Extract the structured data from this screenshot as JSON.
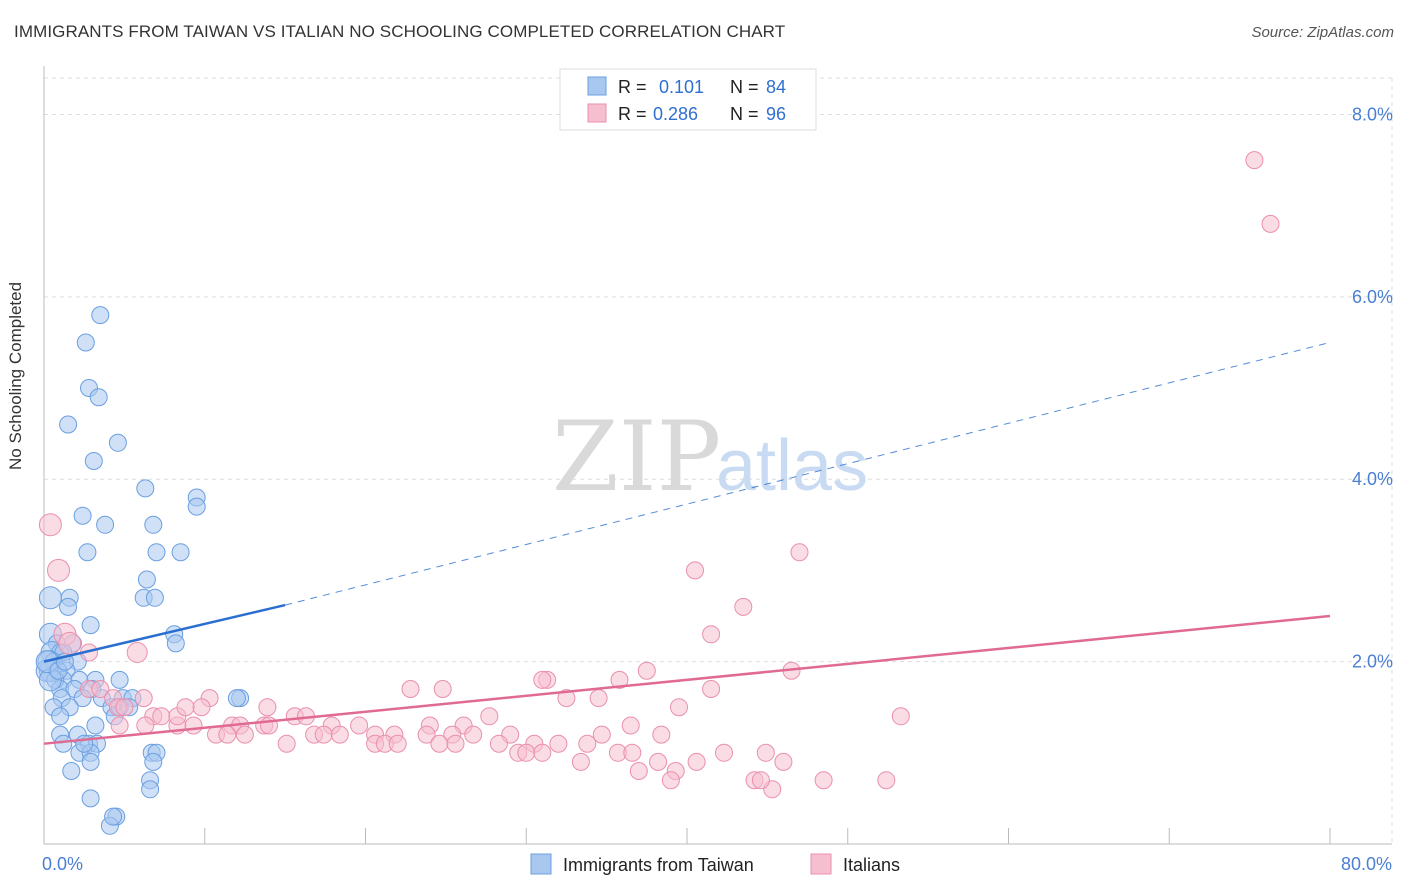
{
  "title": "IMMIGRANTS FROM TAIWAN VS ITALIAN NO SCHOOLING COMPLETED CORRELATION CHART",
  "source": "Source: ZipAtlas.com",
  "watermark": {
    "part1": "ZIP",
    "part2": "atlas"
  },
  "legend": {
    "rows": [
      {
        "r_label": "R =",
        "r_value": "0.101",
        "n_label": "N =",
        "n_value": "84"
      },
      {
        "r_label": "R =",
        "r_value": "0.286",
        "n_label": "N =",
        "n_value": "96"
      }
    ]
  },
  "bottom_legend": [
    "Immigrants from Taiwan",
    "Italians"
  ],
  "colors": {
    "blue_fill": "#a9c8f0",
    "blue_stroke": "#6a9fe0",
    "blue_line": "#2a6fd0",
    "pink_fill": "#f6bfd0",
    "pink_stroke": "#ea8fae",
    "pink_line": "#e06a92",
    "grid": "#dddddd",
    "axis_text": "#4a7fd4"
  },
  "chart_data": {
    "type": "scatter",
    "title": "IMMIGRANTS FROM TAIWAN VS ITALIAN NO SCHOOLING COMPLETED CORRELATION CHART",
    "xlabel": "",
    "ylabel": "No Schooling Completed",
    "xlim": [
      0,
      80
    ],
    "ylim": [
      0,
      8.4
    ],
    "x_tick_labels": [
      "0.0%",
      "80.0%"
    ],
    "y_ticks": [
      2,
      4,
      6,
      8
    ],
    "y_tick_labels": [
      "2.0%",
      "4.0%",
      "6.0%",
      "8.0%"
    ],
    "grid": true,
    "legend_position": "top-center",
    "series": [
      {
        "name": "Immigrants from Taiwan",
        "r": 0.101,
        "n": 84,
        "trend": {
          "solid": [
            [
              0,
              2.0
            ],
            [
              15,
              2.62
            ]
          ],
          "dashed": [
            [
              15,
              2.62
            ],
            [
              80,
              5.5
            ]
          ]
        },
        "points": [
          [
            3.5,
            5.8
          ],
          [
            2.6,
            5.5
          ],
          [
            2.8,
            5.0
          ],
          [
            3.4,
            4.9
          ],
          [
            1.5,
            4.6
          ],
          [
            4.6,
            4.4
          ],
          [
            3.1,
            4.2
          ],
          [
            6.3,
            3.9
          ],
          [
            9.5,
            3.8
          ],
          [
            9.5,
            3.7
          ],
          [
            2.4,
            3.6
          ],
          [
            3.8,
            3.5
          ],
          [
            6.8,
            3.5
          ],
          [
            8.5,
            3.2
          ],
          [
            7.0,
            3.2
          ],
          [
            2.7,
            3.2
          ],
          [
            6.4,
            2.9
          ],
          [
            6.2,
            2.7
          ],
          [
            6.9,
            2.7
          ],
          [
            0.4,
            2.7
          ],
          [
            1.6,
            2.7
          ],
          [
            1.5,
            2.6
          ],
          [
            2.9,
            2.4
          ],
          [
            0.4,
            2.3
          ],
          [
            8.1,
            2.3
          ],
          [
            8.2,
            2.2
          ],
          [
            0.8,
            2.2
          ],
          [
            1.8,
            2.2
          ],
          [
            0.5,
            2.1
          ],
          [
            1.0,
            2.1
          ],
          [
            1.2,
            2.1
          ],
          [
            2.1,
            2.0
          ],
          [
            0.3,
            2.0
          ],
          [
            0.6,
            2.0
          ],
          [
            0.4,
            1.9
          ],
          [
            0.8,
            1.9
          ],
          [
            0.2,
            1.9
          ],
          [
            1.4,
            1.9
          ],
          [
            1.2,
            1.8
          ],
          [
            2.2,
            1.8
          ],
          [
            0.7,
            1.8
          ],
          [
            1.0,
            1.7
          ],
          [
            3.2,
            1.8
          ],
          [
            4.7,
            1.8
          ],
          [
            0.4,
            1.8
          ],
          [
            1.9,
            1.7
          ],
          [
            3.0,
            1.7
          ],
          [
            2.4,
            1.6
          ],
          [
            1.1,
            1.6
          ],
          [
            3.6,
            1.6
          ],
          [
            4.9,
            1.6
          ],
          [
            5.5,
            1.6
          ],
          [
            4.2,
            1.5
          ],
          [
            12.2,
            1.6
          ],
          [
            12.0,
            1.6
          ],
          [
            0.6,
            1.5
          ],
          [
            1.6,
            1.5
          ],
          [
            1.0,
            1.4
          ],
          [
            4.4,
            1.4
          ],
          [
            4.7,
            1.5
          ],
          [
            5.3,
            1.5
          ],
          [
            2.1,
            1.2
          ],
          [
            1.0,
            1.2
          ],
          [
            1.2,
            1.1
          ],
          [
            2.8,
            1.1
          ],
          [
            3.3,
            1.1
          ],
          [
            2.2,
            1.0
          ],
          [
            2.9,
            1.0
          ],
          [
            6.7,
            1.0
          ],
          [
            7.0,
            1.0
          ],
          [
            6.8,
            0.9
          ],
          [
            2.9,
            0.9
          ],
          [
            1.7,
            0.8
          ],
          [
            6.6,
            0.7
          ],
          [
            6.6,
            0.6
          ],
          [
            2.9,
            0.5
          ],
          [
            4.5,
            0.3
          ],
          [
            4.1,
            0.2
          ],
          [
            4.3,
            0.3
          ],
          [
            2.5,
            1.1
          ],
          [
            3.2,
            1.3
          ],
          [
            0.2,
            2.0
          ],
          [
            0.9,
            1.9
          ],
          [
            1.3,
            2.0
          ]
        ]
      },
      {
        "name": "Italians",
        "r": 0.286,
        "n": 96,
        "trend": {
          "solid": [
            [
              0,
              1.1
            ],
            [
              80,
              2.5
            ]
          ]
        },
        "points": [
          [
            75.3,
            7.5
          ],
          [
            76.3,
            6.8
          ],
          [
            0.4,
            3.5
          ],
          [
            0.9,
            3.0
          ],
          [
            47.0,
            3.2
          ],
          [
            40.5,
            3.0
          ],
          [
            43.5,
            2.6
          ],
          [
            1.3,
            2.3
          ],
          [
            1.6,
            2.2
          ],
          [
            41.5,
            2.3
          ],
          [
            2.8,
            2.1
          ],
          [
            5.8,
            2.1
          ],
          [
            46.5,
            1.9
          ],
          [
            37.5,
            1.9
          ],
          [
            35.8,
            1.8
          ],
          [
            31.3,
            1.8
          ],
          [
            31.0,
            1.8
          ],
          [
            41.5,
            1.7
          ],
          [
            22.8,
            1.7
          ],
          [
            24.8,
            1.7
          ],
          [
            32.5,
            1.6
          ],
          [
            34.5,
            1.6
          ],
          [
            39.5,
            1.5
          ],
          [
            2.8,
            1.7
          ],
          [
            3.5,
            1.7
          ],
          [
            4.3,
            1.6
          ],
          [
            10.3,
            1.6
          ],
          [
            9.8,
            1.5
          ],
          [
            4.6,
            1.5
          ],
          [
            5.0,
            1.5
          ],
          [
            13.9,
            1.5
          ],
          [
            15.6,
            1.4
          ],
          [
            16.3,
            1.4
          ],
          [
            27.7,
            1.4
          ],
          [
            53.3,
            1.4
          ],
          [
            6.8,
            1.4
          ],
          [
            7.3,
            1.4
          ],
          [
            8.3,
            1.3
          ],
          [
            6.3,
            1.3
          ],
          [
            9.3,
            1.3
          ],
          [
            4.7,
            1.3
          ],
          [
            11.7,
            1.3
          ],
          [
            13.7,
            1.3
          ],
          [
            14.0,
            1.3
          ],
          [
            12.2,
            1.3
          ],
          [
            17.9,
            1.3
          ],
          [
            19.6,
            1.3
          ],
          [
            24.0,
            1.3
          ],
          [
            26.1,
            1.3
          ],
          [
            36.5,
            1.3
          ],
          [
            38.4,
            1.2
          ],
          [
            10.7,
            1.2
          ],
          [
            11.4,
            1.2
          ],
          [
            12.5,
            1.2
          ],
          [
            16.8,
            1.2
          ],
          [
            17.4,
            1.2
          ],
          [
            18.4,
            1.2
          ],
          [
            20.6,
            1.2
          ],
          [
            21.8,
            1.2
          ],
          [
            23.8,
            1.2
          ],
          [
            25.4,
            1.2
          ],
          [
            26.7,
            1.2
          ],
          [
            29.0,
            1.2
          ],
          [
            34.7,
            1.2
          ],
          [
            15.1,
            1.1
          ],
          [
            20.6,
            1.1
          ],
          [
            21.2,
            1.1
          ],
          [
            22.0,
            1.1
          ],
          [
            24.6,
            1.1
          ],
          [
            25.6,
            1.1
          ],
          [
            28.3,
            1.1
          ],
          [
            30.5,
            1.1
          ],
          [
            32.0,
            1.1
          ],
          [
            33.8,
            1.1
          ],
          [
            29.5,
            1.0
          ],
          [
            30.0,
            1.0
          ],
          [
            31.0,
            1.0
          ],
          [
            35.7,
            1.0
          ],
          [
            36.6,
            1.0
          ],
          [
            42.3,
            1.0
          ],
          [
            44.9,
            1.0
          ],
          [
            38.2,
            0.9
          ],
          [
            33.4,
            0.9
          ],
          [
            40.6,
            0.9
          ],
          [
            46.0,
            0.9
          ],
          [
            37.0,
            0.8
          ],
          [
            39.3,
            0.8
          ],
          [
            44.2,
            0.7
          ],
          [
            45.3,
            0.6
          ],
          [
            48.5,
            0.7
          ],
          [
            52.4,
            0.7
          ],
          [
            44.6,
            0.7
          ],
          [
            39.0,
            0.7
          ],
          [
            8.3,
            1.4
          ],
          [
            8.8,
            1.5
          ],
          [
            6.2,
            1.6
          ]
        ]
      }
    ]
  }
}
